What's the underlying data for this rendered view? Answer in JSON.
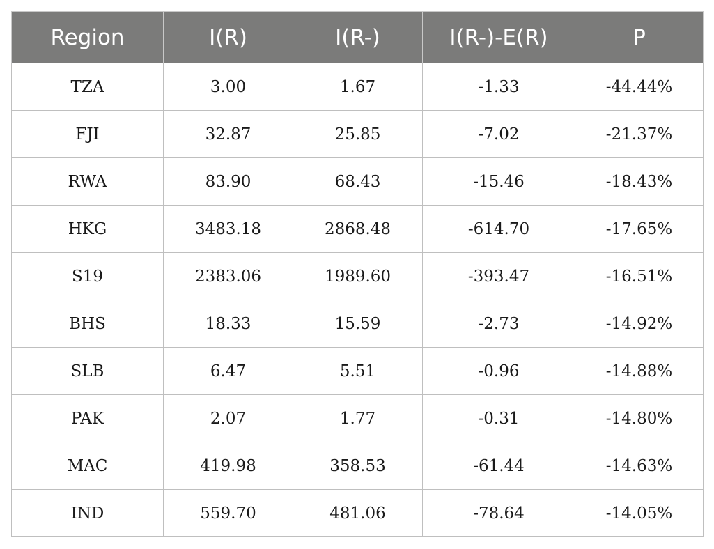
{
  "table": {
    "headers": [
      "Region",
      "I(R)",
      "I(R-)",
      "I(R-)-E(R)",
      "P"
    ],
    "rows": [
      [
        "TZA",
        "3.00",
        "1.67",
        "-1.33",
        "-44.44%"
      ],
      [
        "FJI",
        "32.87",
        "25.85",
        "-7.02",
        "-21.37%"
      ],
      [
        "RWA",
        "83.90",
        "68.43",
        "-15.46",
        "-18.43%"
      ],
      [
        "HKG",
        "3483.18",
        "2868.48",
        "-614.70",
        "-17.65%"
      ],
      [
        "S19",
        "2383.06",
        "1989.60",
        "-393.47",
        "-16.51%"
      ],
      [
        "BHS",
        "18.33",
        "15.59",
        "-2.73",
        "-14.92%"
      ],
      [
        "SLB",
        "6.47",
        "5.51",
        "-0.96",
        "-14.88%"
      ],
      [
        "PAK",
        "2.07",
        "1.77",
        "-0.31",
        "-14.80%"
      ],
      [
        "MAC",
        "419.98",
        "358.53",
        "-61.44",
        "-14.63%"
      ],
      [
        "IND",
        "559.70",
        "481.06",
        "-78.64",
        "-14.05%"
      ]
    ]
  }
}
